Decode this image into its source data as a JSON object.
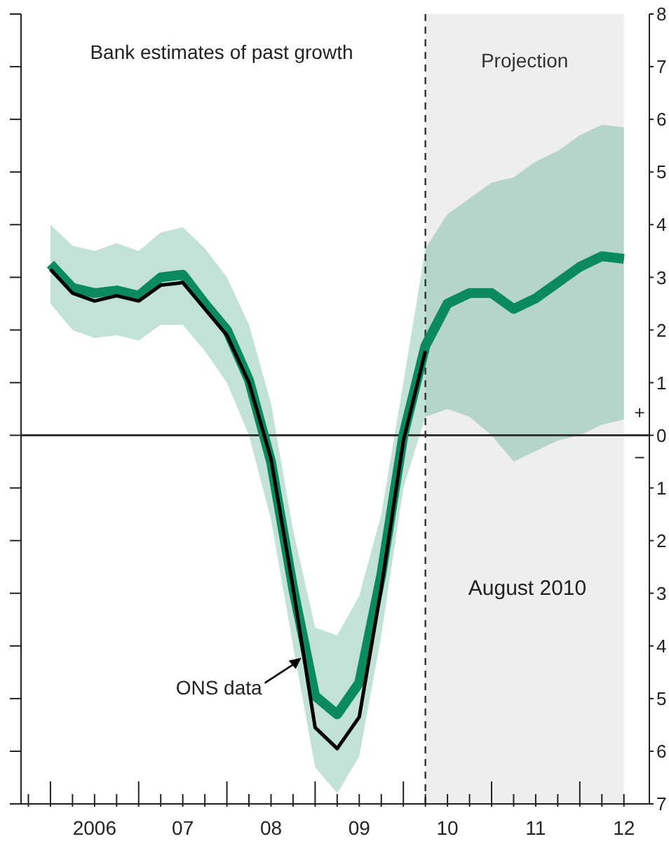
{
  "chart_data": {
    "type": "line",
    "x": [
      "2006-01",
      "2006-04",
      "2006-07",
      "2006-10",
      "2007-01",
      "2007-04",
      "2007-07",
      "2007-10",
      "2008-01",
      "2008-04",
      "2008-07",
      "2008-10",
      "2009-01",
      "2009-04",
      "2009-07",
      "2009-10",
      "2010-01",
      "2010-04",
      "2010-07",
      "2010-10",
      "2011-01",
      "2011-04",
      "2011-07",
      "2011-10",
      "2012-01",
      "2012-04",
      "2012-07"
    ],
    "series": [
      {
        "color": "#0a8a5e",
        "values": [
          3.25,
          2.8,
          2.7,
          2.75,
          2.65,
          3.0,
          3.05,
          2.5,
          2.0,
          1.05,
          -0.5,
          -2.9,
          -4.95,
          -5.3,
          -4.7,
          -2.65,
          0.0,
          1.7,
          2.5,
          2.7,
          2.7,
          2.4,
          2.6,
          2.9,
          3.2,
          3.4,
          3.35
        ],
        "lower": [
          2.5,
          2.0,
          1.85,
          1.9,
          1.8,
          2.1,
          2.1,
          1.6,
          1.0,
          0.0,
          -1.6,
          -4.0,
          -6.3,
          -6.8,
          -6.1,
          -3.8,
          -1.0,
          0.35,
          0.5,
          0.35,
          0.0,
          -0.5,
          -0.3,
          -0.1,
          0.0,
          0.2,
          0.3
        ],
        "upper": [
          4.0,
          3.6,
          3.5,
          3.65,
          3.5,
          3.85,
          3.95,
          3.55,
          3.0,
          2.1,
          0.6,
          -1.8,
          -3.65,
          -3.8,
          -3.05,
          -1.5,
          1.0,
          3.55,
          4.2,
          4.5,
          4.8,
          4.9,
          5.2,
          5.4,
          5.7,
          5.9,
          5.85
        ]
      },
      {
        "name": "ONS data",
        "color": "#000000",
        "x": [
          "2006-01",
          "2006-04",
          "2006-07",
          "2006-10",
          "2007-01",
          "2007-04",
          "2007-07",
          "2007-10",
          "2008-01",
          "2008-04",
          "2008-07",
          "2008-10",
          "2009-01",
          "2009-04",
          "2009-07",
          "2009-10",
          "2010-01",
          "2010-04"
        ],
        "values": [
          3.15,
          2.7,
          2.55,
          2.65,
          2.55,
          2.85,
          2.9,
          2.4,
          1.9,
          1.0,
          -0.45,
          -2.9,
          -5.55,
          -5.95,
          -5.35,
          -2.9,
          -0.1,
          1.6
        ]
      }
    ],
    "xlim": [
      "2005-09",
      "2012-10-15"
    ],
    "xticks": [
      {
        "value": "2005-10",
        "label": null
      },
      {
        "value": "2006-01",
        "label": null
      },
      {
        "value": "2006-04",
        "label": null
      },
      {
        "value": "2006-07",
        "label": "2006"
      },
      {
        "value": "2006-10",
        "label": null
      },
      {
        "value": "2007-01",
        "label": null
      },
      {
        "value": "2007-04",
        "label": null
      },
      {
        "value": "2007-07",
        "label": "07"
      },
      {
        "value": "2007-10",
        "label": null
      },
      {
        "value": "2008-01",
        "label": null
      },
      {
        "value": "2008-04",
        "label": null
      },
      {
        "value": "2008-07",
        "label": "08"
      },
      {
        "value": "2008-10",
        "label": null
      },
      {
        "value": "2009-01",
        "label": null
      },
      {
        "value": "2009-04",
        "label": null
      },
      {
        "value": "2009-07",
        "label": "09"
      },
      {
        "value": "2009-10",
        "label": null
      },
      {
        "value": "2010-01",
        "label": null
      },
      {
        "value": "2010-04",
        "label": null
      },
      {
        "value": "2010-07",
        "label": "10"
      },
      {
        "value": "2010-10",
        "label": null
      },
      {
        "value": "2011-01",
        "label": null
      },
      {
        "value": "2011-04",
        "label": null
      },
      {
        "value": "2011-07",
        "label": "11"
      },
      {
        "value": "2011-10",
        "label": null
      },
      {
        "value": "2012-01",
        "label": null
      },
      {
        "value": "2012-04",
        "label": null
      },
      {
        "value": "2012-07",
        "label": "12"
      }
    ],
    "ylim": [
      -7,
      8
    ],
    "yticks": [
      8,
      7,
      6,
      5,
      4,
      3,
      2,
      1,
      0,
      {
        "value": -1,
        "label": "1"
      },
      {
        "value": -2,
        "label": "2"
      },
      {
        "value": -3,
        "label": "3"
      },
      {
        "value": -4,
        "label": "4"
      },
      {
        "value": -5,
        "label": "5"
      },
      {
        "value": -6,
        "label": "6"
      },
      {
        "value": -7,
        "label": "7"
      }
    ],
    "ref_lines": [
      {
        "axis": "y",
        "value": 0,
        "color": "#333333"
      },
      {
        "axis": "x",
        "value": "2010-04",
        "line_style": "dashed",
        "color": "#333333"
      }
    ],
    "bands": [
      {
        "axis": "x",
        "from": "2010-04",
        "to": "2012-07",
        "label": "Projection",
        "color": "#eeeeee"
      }
    ],
    "annotations": [
      "Bank estimates of past growth",
      "August 2010",
      "+",
      "−"
    ],
    "grid": false,
    "marker": "none",
    "line_style": "solid"
  }
}
